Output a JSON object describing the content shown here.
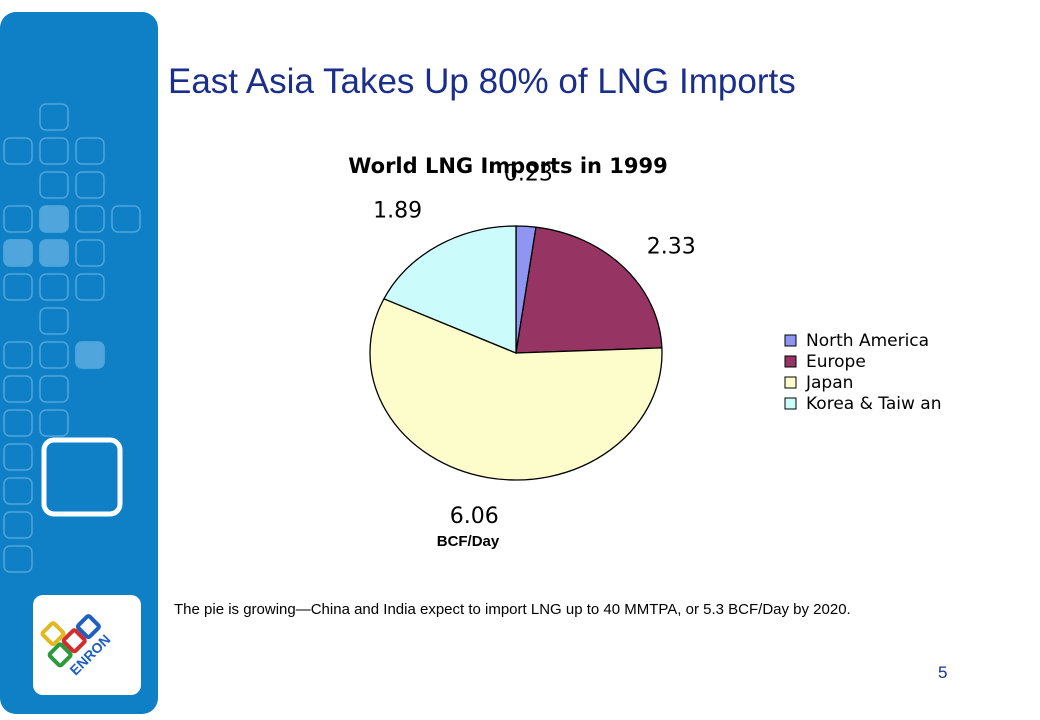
{
  "slide": {
    "title": "East Asia Takes Up 80% of LNG Imports",
    "caption": "The pie is growing—China and India expect to import LNG up to 40 MMTPA, or 5.3 BCF/Day by 2020.",
    "page_number": "5"
  },
  "brand": {
    "logo_letters": "ENRON",
    "sidebar_color": "#0f7fc6"
  },
  "chart_data": {
    "type": "pie",
    "title": "World LNG Imports in 1999",
    "unit_label": "BCF/Day",
    "legend_position": "right",
    "categories": [
      "North America",
      "Europe",
      "Japan",
      "Korea & Taiw an"
    ],
    "values": [
      0.23,
      2.33,
      6.06,
      1.89
    ],
    "value_labels": [
      "0.23",
      "2.33",
      "6.06",
      "1.89"
    ],
    "colors": [
      "#8f96f2",
      "#963563",
      "#fdfccb",
      "#ccfbfb"
    ]
  }
}
